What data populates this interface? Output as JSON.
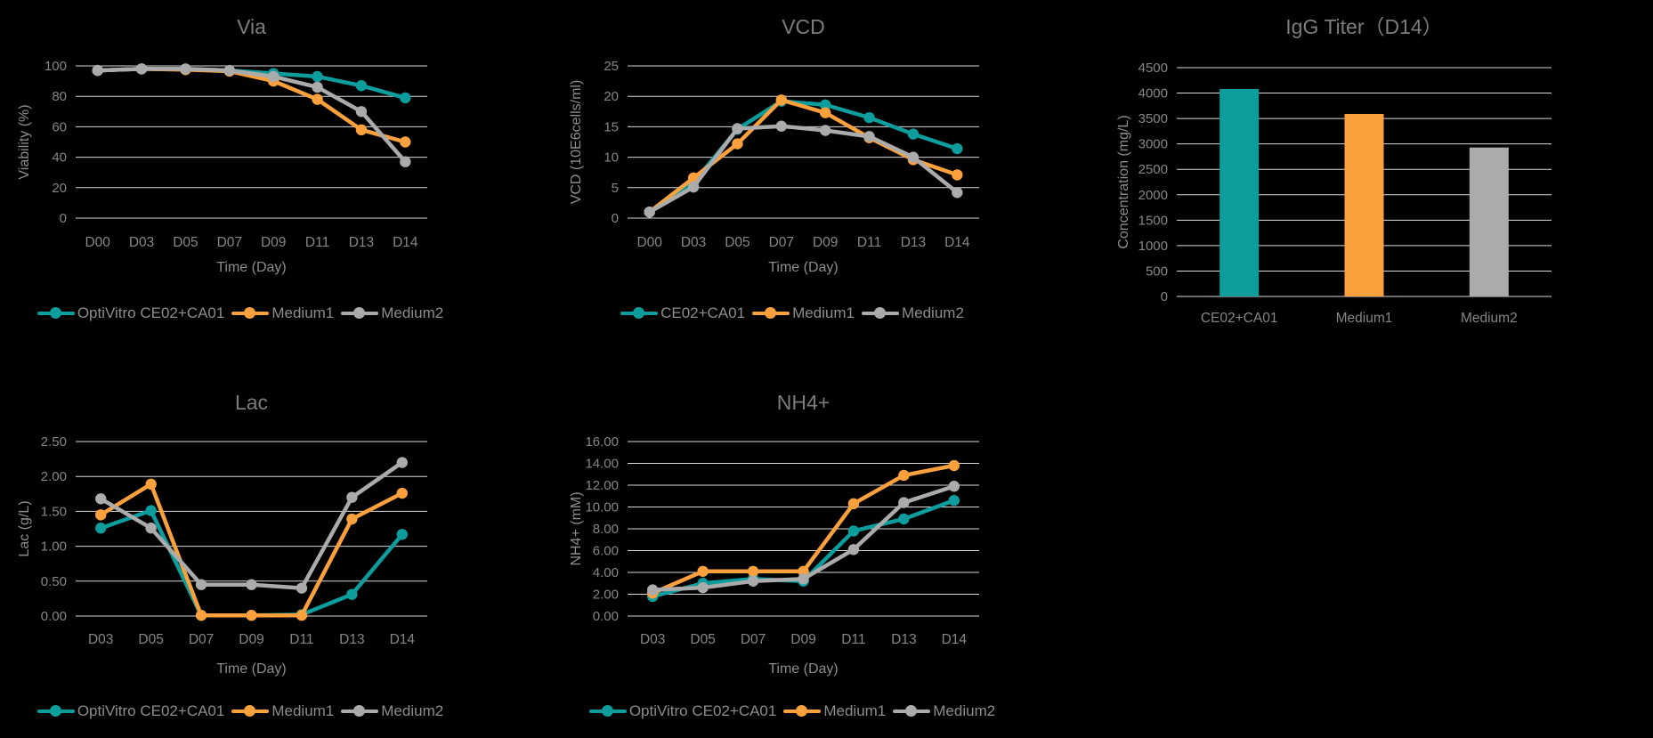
{
  "page": {
    "background": "#000000"
  },
  "palette": {
    "teal": "#0D9D9D",
    "orange": "#FAA03C",
    "gray": "#ABABAB",
    "grid": "#D9D9D9",
    "title_text": "#7C7C7C",
    "axis_text": "#868686",
    "legend_text": "#8C8C8C"
  },
  "chart_data": [
    {
      "id": "via",
      "type": "line",
      "title": "Via",
      "xlabel": "Time (Day)",
      "ylabel": "Viability (%)",
      "ylim": [
        0,
        100
      ],
      "ytick_step": 20,
      "ytick_decimals": 0,
      "ytick_labels": [
        "0",
        "20",
        "40",
        "60",
        "80",
        "100"
      ],
      "grid": true,
      "legend": true,
      "legend_position": "bottom",
      "categories": [
        "D00",
        "D03",
        "D05",
        "D07",
        "D09",
        "D11",
        "D13",
        "D14"
      ],
      "series": [
        {
          "name": "OptiVitro CE02+CA01",
          "color_key": "teal",
          "values": [
            97,
            98,
            98,
            97,
            95,
            93,
            87,
            79
          ]
        },
        {
          "name": "Medium1",
          "color_key": "orange",
          "values": [
            97,
            98,
            97.5,
            96.5,
            90,
            78,
            58,
            50
          ]
        },
        {
          "name": "Medium2",
          "color_key": "gray",
          "values": [
            97,
            98,
            98,
            97,
            93,
            86,
            70,
            37
          ]
        }
      ]
    },
    {
      "id": "vcd",
      "type": "line",
      "title": "VCD",
      "xlabel": "Time (Day)",
      "ylabel": "VCD (10E6cells/ml)",
      "ylim": [
        0,
        25
      ],
      "ytick_step": 5,
      "ytick_decimals": 0,
      "ytick_labels": [
        "0",
        "5",
        "10",
        "15",
        "20",
        "25"
      ],
      "grid": true,
      "legend": true,
      "legend_position": "bottom",
      "categories": [
        "D00",
        "D03",
        "D05",
        "D07",
        "D09",
        "D11",
        "D13",
        "D14"
      ],
      "series": [
        {
          "name": "CE02+CA01",
          "color_key": "teal",
          "values": [
            1,
            5.8,
            14.6,
            19.2,
            18.6,
            16.5,
            13.8,
            11.4
          ]
        },
        {
          "name": "Medium1",
          "color_key": "orange",
          "values": [
            1,
            6.6,
            12.2,
            19.4,
            17.3,
            13.2,
            9.6,
            7.1
          ]
        },
        {
          "name": "Medium2",
          "color_key": "gray",
          "values": [
            1,
            5.1,
            14.7,
            15.1,
            14.4,
            13.4,
            10.0,
            4.2
          ]
        }
      ]
    },
    {
      "id": "igg",
      "type": "bar",
      "title": "IgG Titer（D14）",
      "xlabel": "",
      "ylabel": "Concentration (mg/L)",
      "ylim": [
        0,
        4500
      ],
      "ytick_step": 500,
      "ytick_decimals": 0,
      "ytick_labels": [
        "0",
        "500",
        "1000",
        "1500",
        "2000",
        "2500",
        "3000",
        "3500",
        "4000",
        "4500"
      ],
      "grid": true,
      "legend": false,
      "categories": [
        "CE02+CA01",
        "Medium1",
        "Medium2"
      ],
      "values": [
        4080,
        3590,
        2930
      ],
      "bar_color_keys": [
        "teal",
        "orange",
        "gray"
      ]
    },
    {
      "id": "lac",
      "type": "line",
      "title": "Lac",
      "xlabel": "Time (Day)",
      "ylabel": "Lac (g/L)",
      "ylim": [
        0,
        2.5
      ],
      "ytick_step": 0.5,
      "ytick_decimals": 2,
      "ytick_labels": [
        "0.00",
        "0.50",
        "1.00",
        "1.50",
        "2.00",
        "2.50"
      ],
      "grid": true,
      "legend": true,
      "legend_position": "bottom",
      "categories": [
        "D03",
        "D05",
        "D07",
        "D09",
        "D11",
        "D13",
        "D14"
      ],
      "series": [
        {
          "name": "OptiVitro CE02+CA01",
          "color_key": "teal",
          "values": [
            1.26,
            1.51,
            0.01,
            0.01,
            0.02,
            0.31,
            1.17
          ]
        },
        {
          "name": "Medium1",
          "color_key": "orange",
          "values": [
            1.45,
            1.89,
            0.01,
            0.01,
            0.01,
            1.39,
            1.76
          ]
        },
        {
          "name": "Medium2",
          "color_key": "gray",
          "values": [
            1.68,
            1.26,
            0.45,
            0.45,
            0.4,
            1.7,
            2.2
          ]
        }
      ]
    },
    {
      "id": "nh4",
      "type": "line",
      "title": "NH4+",
      "xlabel": "Time (Day)",
      "ylabel": "NH4+ (mM)",
      "ylim": [
        0,
        16
      ],
      "ytick_step": 2,
      "ytick_decimals": 2,
      "ytick_labels": [
        "0.00",
        "2.00",
        "4.00",
        "6.00",
        "8.00",
        "10.00",
        "12.00",
        "14.00",
        "16.00"
      ],
      "grid": true,
      "legend": true,
      "legend_position": "bottom",
      "categories": [
        "D03",
        "D05",
        "D07",
        "D09",
        "D11",
        "D13",
        "D14"
      ],
      "series": [
        {
          "name": "OptiVitro CE02+CA01",
          "color_key": "teal",
          "values": [
            1.8,
            3.0,
            3.4,
            3.2,
            7.8,
            8.9,
            10.6
          ]
        },
        {
          "name": "Medium1",
          "color_key": "orange",
          "values": [
            2.1,
            4.1,
            4.1,
            4.1,
            10.3,
            12.9,
            13.8
          ]
        },
        {
          "name": "Medium2",
          "color_key": "gray",
          "values": [
            2.4,
            2.6,
            3.2,
            3.4,
            6.1,
            10.4,
            11.9
          ]
        }
      ]
    }
  ]
}
